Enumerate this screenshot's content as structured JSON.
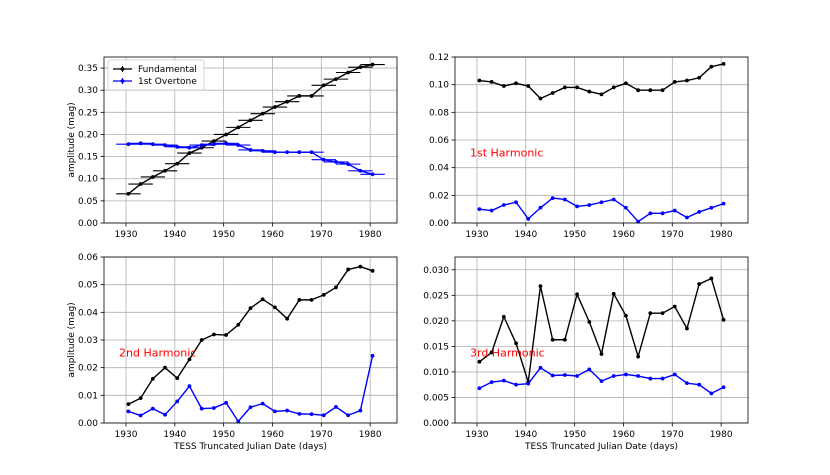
{
  "chart_data": [
    {
      "id": "fundamental",
      "type": "line",
      "title": "",
      "xlabel": "",
      "ylabel": "amplitude (mag)",
      "xlim": [
        1925.5,
        1985.5
      ],
      "ylim": [
        0,
        0.375
      ],
      "xticks": [
        1930,
        1940,
        1950,
        1960,
        1970,
        1980
      ],
      "yticks": [
        0.0,
        0.05,
        0.1,
        0.15,
        0.2,
        0.25,
        0.3,
        0.35
      ],
      "ytick_labels": [
        "0.00",
        "0.05",
        "0.10",
        "0.15",
        "0.20",
        "0.25",
        "0.30",
        "0.35"
      ],
      "grid": true,
      "legend": "top-left",
      "annotation": "",
      "series": [
        {
          "name": "Fundamental",
          "color": "#000000",
          "xerr": 2.5,
          "x": [
            1930.5,
            1933.0,
            1935.5,
            1938.0,
            1940.5,
            1943.0,
            1945.5,
            1948.0,
            1950.5,
            1953.0,
            1955.5,
            1958.0,
            1960.5,
            1963.0,
            1965.5,
            1968.0,
            1970.5,
            1973.0,
            1975.5,
            1978.0,
            1980.5
          ],
          "y": [
            0.066,
            0.088,
            0.104,
            0.118,
            0.134,
            0.158,
            0.17,
            0.185,
            0.2,
            0.216,
            0.232,
            0.247,
            0.262,
            0.274,
            0.287,
            0.287,
            0.311,
            0.325,
            0.34,
            0.352,
            0.358
          ]
        },
        {
          "name": "1st Overtone",
          "color": "#0000ff",
          "xerr": 2.5,
          "x": [
            1930.5,
            1933.0,
            1935.5,
            1938.0,
            1940.5,
            1943.0,
            1945.5,
            1948.0,
            1950.5,
            1953.0,
            1955.5,
            1958.0,
            1960.5,
            1963.0,
            1965.5,
            1968.0,
            1970.5,
            1973.0,
            1975.5,
            1978.0,
            1980.5
          ],
          "y": [
            0.178,
            0.18,
            0.178,
            0.176,
            0.172,
            0.17,
            0.176,
            0.178,
            0.18,
            0.176,
            0.165,
            0.163,
            0.16,
            0.16,
            0.16,
            0.16,
            0.143,
            0.138,
            0.133,
            0.118,
            0.11
          ]
        }
      ]
    },
    {
      "id": "first-harmonic",
      "type": "line",
      "title": "",
      "xlabel": "",
      "ylabel": "",
      "xlim": [
        1925.5,
        1985.5
      ],
      "ylim": [
        0,
        0.12
      ],
      "xticks": [
        1930,
        1940,
        1950,
        1960,
        1970,
        1980
      ],
      "yticks": [
        0.0,
        0.02,
        0.04,
        0.06,
        0.08,
        0.1,
        0.12
      ],
      "ytick_labels": [
        "0.00",
        "0.02",
        "0.04",
        "0.06",
        "0.08",
        "0.10",
        "0.12"
      ],
      "grid": true,
      "legend": "none",
      "annotation": "1st Harmonic",
      "series": [
        {
          "name": "Fundamental",
          "color": "#000000",
          "x": [
            1930.5,
            1933.0,
            1935.5,
            1938.0,
            1940.5,
            1943.0,
            1945.5,
            1948.0,
            1950.5,
            1953.0,
            1955.5,
            1958.0,
            1960.5,
            1963.0,
            1965.5,
            1968.0,
            1970.5,
            1973.0,
            1975.5,
            1978.0,
            1980.5
          ],
          "y": [
            0.103,
            0.102,
            0.099,
            0.101,
            0.099,
            0.09,
            0.094,
            0.098,
            0.098,
            0.095,
            0.093,
            0.098,
            0.101,
            0.096,
            0.096,
            0.096,
            0.102,
            0.103,
            0.105,
            0.113,
            0.115
          ]
        },
        {
          "name": "1st Overtone",
          "color": "#0000ff",
          "x": [
            1930.5,
            1933.0,
            1935.5,
            1938.0,
            1940.5,
            1943.0,
            1945.5,
            1948.0,
            1950.5,
            1953.0,
            1955.5,
            1958.0,
            1960.5,
            1963.0,
            1965.5,
            1968.0,
            1970.5,
            1973.0,
            1975.5,
            1978.0,
            1980.5
          ],
          "y": [
            0.01,
            0.009,
            0.013,
            0.015,
            0.003,
            0.011,
            0.018,
            0.017,
            0.012,
            0.013,
            0.015,
            0.017,
            0.011,
            0.001,
            0.007,
            0.007,
            0.009,
            0.004,
            0.008,
            0.011,
            0.014
          ]
        }
      ]
    },
    {
      "id": "second-harmonic",
      "type": "line",
      "title": "",
      "xlabel": "TESS Truncated Julian Date (days)",
      "ylabel": "amplitude (mag)",
      "xlim": [
        1925.5,
        1985.5
      ],
      "ylim": [
        0,
        0.06
      ],
      "xticks": [
        1930,
        1940,
        1950,
        1960,
        1970,
        1980
      ],
      "yticks": [
        0.0,
        0.01,
        0.02,
        0.03,
        0.04,
        0.05,
        0.06
      ],
      "ytick_labels": [
        "0.00",
        "0.01",
        "0.02",
        "0.03",
        "0.04",
        "0.05",
        "0.06"
      ],
      "grid": true,
      "legend": "none",
      "annotation": "2nd Harmonic",
      "series": [
        {
          "name": "Fundamental",
          "color": "#000000",
          "x": [
            1930.5,
            1933.0,
            1935.5,
            1938.0,
            1940.5,
            1943.0,
            1945.5,
            1948.0,
            1950.5,
            1953.0,
            1955.5,
            1958.0,
            1960.5,
            1963.0,
            1965.5,
            1968.0,
            1970.5,
            1973.0,
            1975.5,
            1978.0,
            1980.5
          ],
          "y": [
            0.0068,
            0.009,
            0.016,
            0.02,
            0.0162,
            0.023,
            0.03,
            0.032,
            0.0318,
            0.0355,
            0.0415,
            0.0447,
            0.0418,
            0.0377,
            0.0445,
            0.0445,
            0.0463,
            0.049,
            0.0555,
            0.0565,
            0.055
          ]
        },
        {
          "name": "1st Overtone",
          "color": "#0000ff",
          "x": [
            1930.5,
            1933.0,
            1935.5,
            1938.0,
            1940.5,
            1943.0,
            1945.5,
            1948.0,
            1950.5,
            1953.0,
            1955.5,
            1958.0,
            1960.5,
            1963.0,
            1965.5,
            1968.0,
            1970.5,
            1973.0,
            1975.5,
            1978.0,
            1980.5
          ],
          "y": [
            0.0042,
            0.0027,
            0.0052,
            0.003,
            0.0078,
            0.0133,
            0.0052,
            0.0054,
            0.0073,
            0.0006,
            0.0057,
            0.007,
            0.0042,
            0.0045,
            0.0033,
            0.0032,
            0.0028,
            0.0058,
            0.0028,
            0.0045,
            0.0243
          ]
        }
      ]
    },
    {
      "id": "third-harmonic",
      "type": "line",
      "title": "",
      "xlabel": "TESS Truncated Julian Date (days)",
      "ylabel": "",
      "xlim": [
        1925.5,
        1985.5
      ],
      "ylim": [
        0,
        0.0325
      ],
      "xticks": [
        1930,
        1940,
        1950,
        1960,
        1970,
        1980
      ],
      "yticks": [
        0.0,
        0.005,
        0.01,
        0.015,
        0.02,
        0.025,
        0.03
      ],
      "ytick_labels": [
        "0.000",
        "0.005",
        "0.010",
        "0.015",
        "0.020",
        "0.025",
        "0.030"
      ],
      "grid": true,
      "legend": "none",
      "annotation": "3rd Harmonic",
      "series": [
        {
          "name": "Fundamental",
          "color": "#000000",
          "x": [
            1930.5,
            1933.0,
            1935.5,
            1938.0,
            1940.5,
            1943.0,
            1945.5,
            1948.0,
            1950.5,
            1953.0,
            1955.5,
            1958.0,
            1960.5,
            1963.0,
            1965.5,
            1968.0,
            1970.5,
            1973.0,
            1975.5,
            1978.0,
            1980.5
          ],
          "y": [
            0.012,
            0.0138,
            0.0208,
            0.0156,
            0.008,
            0.0268,
            0.0163,
            0.0163,
            0.0252,
            0.0198,
            0.0135,
            0.0253,
            0.021,
            0.013,
            0.0215,
            0.0215,
            0.0228,
            0.0185,
            0.0272,
            0.0283,
            0.0202
          ]
        },
        {
          "name": "1st Overtone",
          "color": "#0000ff",
          "x": [
            1930.5,
            1933.0,
            1935.5,
            1938.0,
            1940.5,
            1943.0,
            1945.5,
            1948.0,
            1950.5,
            1953.0,
            1955.5,
            1958.0,
            1960.5,
            1963.0,
            1965.5,
            1968.0,
            1970.5,
            1973.0,
            1975.5,
            1978.0,
            1980.5
          ],
          "y": [
            0.0068,
            0.008,
            0.0083,
            0.0075,
            0.0077,
            0.0108,
            0.0093,
            0.0094,
            0.0092,
            0.0105,
            0.0082,
            0.0092,
            0.0095,
            0.0092,
            0.0087,
            0.0087,
            0.0095,
            0.0078,
            0.0075,
            0.0058,
            0.007
          ]
        }
      ]
    }
  ]
}
